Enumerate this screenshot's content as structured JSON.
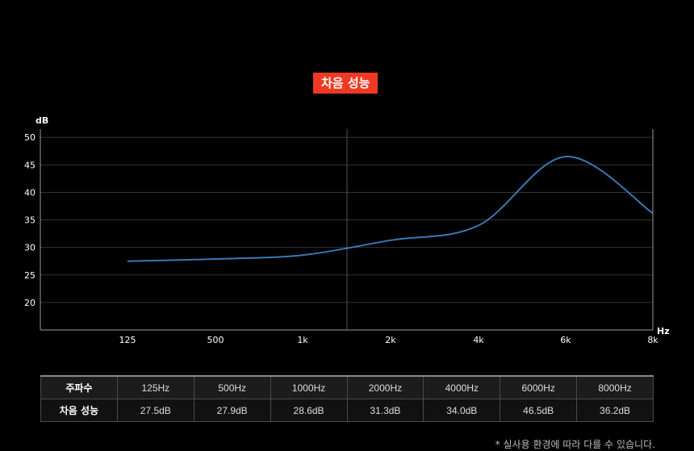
{
  "header": {
    "title": "차음 성능"
  },
  "chart_data": {
    "type": "line",
    "title": "차음 성능",
    "xlabel": "Hz",
    "ylabel": "dB",
    "x_ticks": [
      "125",
      "500",
      "1k",
      "2k",
      "4k",
      "6k",
      "8k"
    ],
    "y_ticks": [
      20,
      25,
      30,
      35,
      40,
      45,
      50
    ],
    "ylim": [
      15,
      51.5
    ],
    "grid": true,
    "series": [
      {
        "categories": [
          "125",
          "500",
          "1k",
          "2k",
          "4k",
          "6k",
          "8k"
        ],
        "values": [
          27.5,
          27.9,
          28.6,
          31.3,
          34.0,
          46.5,
          36.2
        ]
      }
    ],
    "line_color": "#3a78b4"
  },
  "table": {
    "headers": [
      "주파수",
      "125Hz",
      "500Hz",
      "1000Hz",
      "2000Hz",
      "4000Hz",
      "6000Hz",
      "8000Hz"
    ],
    "row": [
      "차음 성능",
      "27.5dB",
      "27.9dB",
      "28.6dB",
      "31.3dB",
      "34.0dB",
      "46.5dB",
      "36.2dB"
    ]
  },
  "footnote": "* 실사용 환경에 따라 다를 수 있습니다."
}
